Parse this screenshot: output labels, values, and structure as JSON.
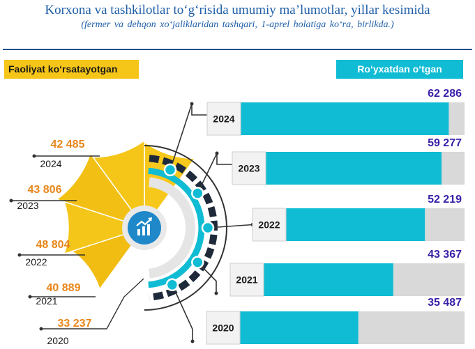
{
  "header": {
    "title": "Korxona va tashkilotlar to‘g‘risida umumiy ma’lumotlar, yillar kesimida",
    "subtitle": "(fermer va dehqon xo‘jaliklaridan tashqari, 1-aprel holatiga ko‘ra, birlikda.)"
  },
  "legend": {
    "left_label": "Faoliyat ko‘rsatayotgan",
    "right_label": "Ro‘yxatdan o‘tgan"
  },
  "colors": {
    "active": "#f5c518",
    "registered": "#10bcd4",
    "track": "#d9d9d9",
    "value_orange": "#e8861a",
    "value_purple": "#3a1fa8"
  },
  "icon": "growth-chart-icon",
  "chart_data": {
    "type": "bar",
    "categories": [
      "2024",
      "2023",
      "2022",
      "2021",
      "2020"
    ],
    "series": [
      {
        "name": "Faoliyat ko‘rsatayotgan",
        "values": [
          42485,
          43806,
          48804,
          40889,
          33237
        ],
        "labels": [
          "42 485",
          "43 806",
          "48 804",
          "40 889",
          "33 237"
        ]
      },
      {
        "name": "Ro‘yxatdan o‘tgan",
        "values": [
          62286,
          59277,
          52219,
          43367,
          35487
        ],
        "labels": [
          "62 286",
          "59 277",
          "52 219",
          "43 367",
          "35 487"
        ]
      }
    ],
    "title": "Korxona va tashkilotlar to‘g‘risida umumiy ma’lumotlar, yillar kesimida"
  }
}
